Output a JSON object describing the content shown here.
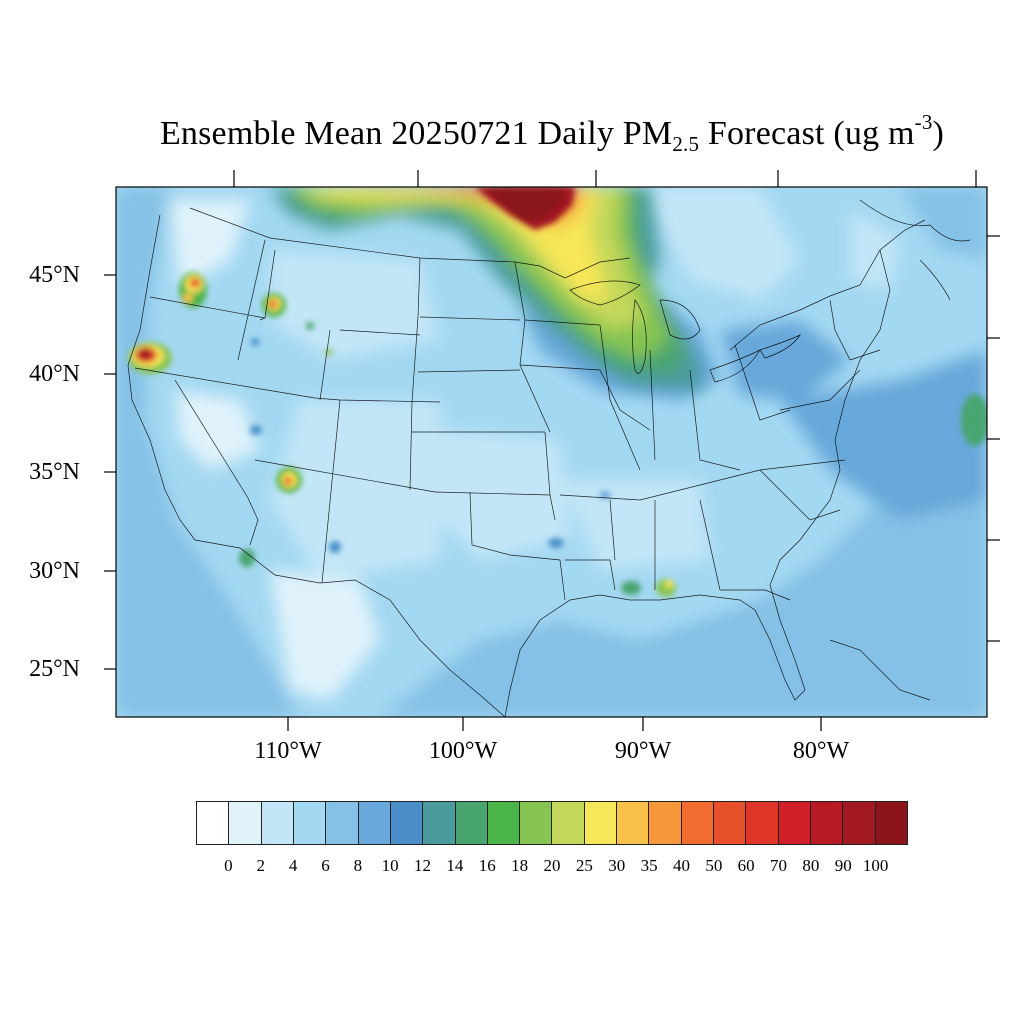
{
  "title": {
    "text_main": "Ensemble Mean 20250721 Daily PM",
    "sub": "2.5",
    "text_mid": " Forecast (ug m",
    "sup": "-3",
    "text_end": ")"
  },
  "axes": {
    "lat_labels": [
      "45°N",
      "40°N",
      "35°N",
      "30°N",
      "25°N"
    ],
    "lon_labels": [
      "110°W",
      "100°W",
      "90°W",
      "80°W"
    ]
  },
  "colorbar": {
    "labels": [
      "0",
      "2",
      "4",
      "6",
      "8",
      "10",
      "12",
      "14",
      "16",
      "18",
      "20",
      "25",
      "30",
      "35",
      "40",
      "50",
      "60",
      "70",
      "80",
      "90",
      "100"
    ],
    "colors": [
      "#ffffff",
      "#e0f3fb",
      "#c2e6f7",
      "#a3d8f2",
      "#85c1e6",
      "#68a8da",
      "#4a8fc9",
      "#4a9b9c",
      "#48a56f",
      "#4cb54a",
      "#86c552",
      "#c3d75a",
      "#f6e659",
      "#f8c14a",
      "#f6973c",
      "#f26c30",
      "#e8502b",
      "#de3628",
      "#d11f2a",
      "#b81a24",
      "#a21921",
      "#8b151b"
    ]
  }
}
